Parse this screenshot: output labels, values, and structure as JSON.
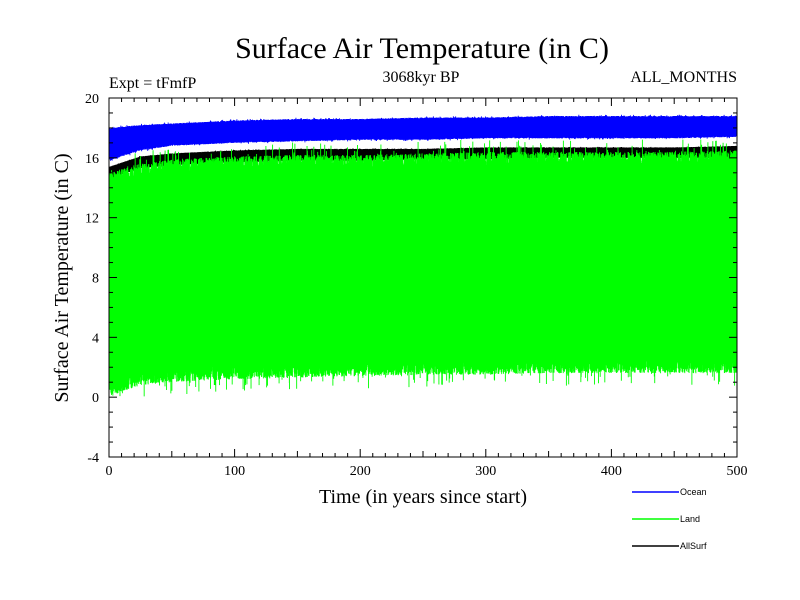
{
  "chart_data": {
    "type": "line",
    "title": "Surface Air Temperature (in C)",
    "subtitle_left": "Expt = tFmfP",
    "subtitle_center": "3068kyr BP",
    "subtitle_right": "ALL_MONTHS",
    "xlabel": "Time (in years since start)",
    "ylabel": "Surface Air Temperature (in C)",
    "xlim": [
      0,
      500
    ],
    "ylim": [
      -4,
      20
    ],
    "xticks": [
      "0",
      "100",
      "200",
      "300",
      "400",
      "500"
    ],
    "yticks": [
      "-4",
      "0",
      "4",
      "8",
      "12",
      "16",
      "20"
    ],
    "series": [
      {
        "name": "Ocean",
        "color": "#0000ff",
        "x": [
          0,
          25,
          50,
          100,
          150,
          200,
          250,
          300,
          350,
          400,
          450,
          500
        ],
        "upper": [
          18.0,
          18.2,
          18.3,
          18.5,
          18.6,
          18.6,
          18.7,
          18.7,
          18.8,
          18.8,
          18.8,
          18.8
        ],
        "lower": [
          15.8,
          16.5,
          16.8,
          17.0,
          17.1,
          17.2,
          17.2,
          17.3,
          17.3,
          17.3,
          17.3,
          17.4
        ]
      },
      {
        "name": "Land",
        "color": "#00ff00",
        "x": [
          0,
          25,
          50,
          100,
          150,
          200,
          250,
          300,
          350,
          400,
          450,
          500
        ],
        "upper": [
          15.0,
          15.6,
          15.9,
          16.1,
          16.2,
          16.2,
          16.3,
          16.4,
          16.4,
          16.4,
          16.4,
          16.5
        ],
        "lower": [
          0.0,
          0.8,
          1.0,
          1.2,
          1.3,
          1.4,
          1.5,
          1.5,
          1.6,
          1.6,
          1.6,
          1.6
        ]
      },
      {
        "name": "AllSurf",
        "color": "#000000",
        "x": [
          0,
          25,
          50,
          100,
          150,
          200,
          250,
          300,
          350,
          400,
          450,
          500
        ],
        "upper": [
          15.4,
          16.1,
          16.3,
          16.5,
          16.6,
          16.6,
          16.6,
          16.7,
          16.7,
          16.7,
          16.7,
          16.8
        ],
        "lower": [
          14.6,
          15.3,
          15.5,
          15.7,
          15.8,
          15.8,
          15.9,
          15.9,
          16.0,
          16.0,
          16.0,
          16.0
        ]
      }
    ],
    "legend_position": "bottom-right"
  }
}
